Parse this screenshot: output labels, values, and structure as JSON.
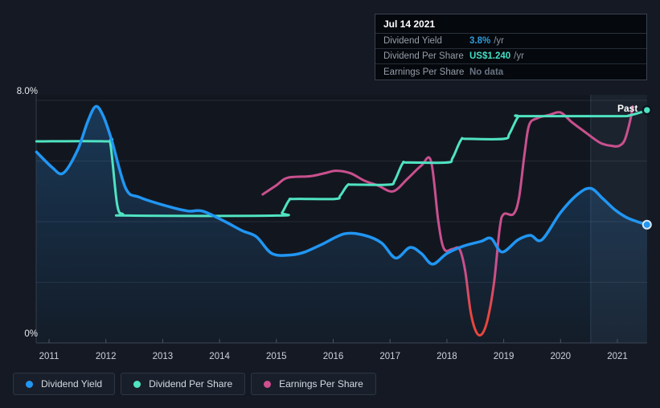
{
  "tooltip": {
    "date": "Jul 14 2021",
    "rows": [
      {
        "label": "Dividend Yield",
        "value": "3.8%",
        "suffix": "/yr",
        "color": "#2d9cdb"
      },
      {
        "label": "Dividend Per Share",
        "value": "US$1.240",
        "suffix": "/yr",
        "color": "#43dfc4"
      },
      {
        "label": "Earnings Per Share",
        "value": "No data",
        "suffix": "",
        "color": "#697382"
      }
    ]
  },
  "legend": {
    "items": [
      {
        "label": "Dividend Yield",
        "color": "#2196f3"
      },
      {
        "label": "Dividend Per Share",
        "color": "#50e3c2"
      },
      {
        "label": "Earnings Per Share",
        "color": "#cf4f90"
      }
    ]
  },
  "chart_data": {
    "type": "line",
    "past_label": "Past",
    "y_axis": {
      "unit": "%",
      "min": 0,
      "max": 8,
      "labeled_ticks": [
        {
          "value": 8,
          "label": "8.0%"
        },
        {
          "value": 0,
          "label": "0%"
        }
      ],
      "grid_values": [
        8,
        6,
        4,
        2
      ]
    },
    "x_axis": {
      "min": 2010.78,
      "max": 2021.52,
      "tick_years": [
        "2011",
        "2012",
        "2013",
        "2014",
        "2015",
        "2016",
        "2017",
        "2018",
        "2019",
        "2020",
        "2021"
      ]
    },
    "highlight_band": {
      "from": 2020.53,
      "to": 2021.52
    },
    "series": [
      {
        "name": "Dividend Yield",
        "color": "#2196f3",
        "area_fill": true,
        "end_marker": true,
        "points": [
          [
            2010.78,
            6.3
          ],
          [
            2011.05,
            5.8
          ],
          [
            2011.25,
            5.6
          ],
          [
            2011.5,
            6.35
          ],
          [
            2011.68,
            7.3
          ],
          [
            2011.82,
            7.8
          ],
          [
            2011.95,
            7.5
          ],
          [
            2012.1,
            6.7
          ],
          [
            2012.35,
            5.1
          ],
          [
            2012.6,
            4.8
          ],
          [
            2013.1,
            4.5
          ],
          [
            2013.45,
            4.35
          ],
          [
            2013.7,
            4.35
          ],
          [
            2014.1,
            4.0
          ],
          [
            2014.4,
            3.7
          ],
          [
            2014.65,
            3.5
          ],
          [
            2014.92,
            2.95
          ],
          [
            2015.25,
            2.9
          ],
          [
            2015.5,
            3.0
          ],
          [
            2015.8,
            3.25
          ],
          [
            2016.2,
            3.6
          ],
          [
            2016.55,
            3.55
          ],
          [
            2016.85,
            3.3
          ],
          [
            2017.1,
            2.8
          ],
          [
            2017.35,
            3.15
          ],
          [
            2017.55,
            2.95
          ],
          [
            2017.75,
            2.6
          ],
          [
            2018.0,
            2.95
          ],
          [
            2018.3,
            3.2
          ],
          [
            2018.6,
            3.35
          ],
          [
            2018.78,
            3.45
          ],
          [
            2018.97,
            3.0
          ],
          [
            2019.25,
            3.4
          ],
          [
            2019.47,
            3.55
          ],
          [
            2019.67,
            3.4
          ],
          [
            2020.0,
            4.3
          ],
          [
            2020.3,
            4.9
          ],
          [
            2020.53,
            5.1
          ],
          [
            2020.75,
            4.75
          ],
          [
            2020.95,
            4.4
          ],
          [
            2021.15,
            4.15
          ],
          [
            2021.35,
            4.0
          ],
          [
            2021.52,
            3.9
          ]
        ]
      },
      {
        "name": "Dividend Per Share",
        "color": "#50e3c2",
        "area_fill": false,
        "end_marker": true,
        "points": [
          [
            2010.78,
            6.65
          ],
          [
            2012.0,
            6.65
          ],
          [
            2012.08,
            6.55
          ],
          [
            2012.2,
            4.55
          ],
          [
            2012.3,
            4.25
          ],
          [
            2012.4,
            4.2
          ],
          [
            2015.0,
            4.2
          ],
          [
            2015.1,
            4.3
          ],
          [
            2015.22,
            4.7
          ],
          [
            2015.32,
            4.75
          ],
          [
            2016.03,
            4.75
          ],
          [
            2016.12,
            4.85
          ],
          [
            2016.25,
            5.2
          ],
          [
            2016.35,
            5.22
          ],
          [
            2016.98,
            5.22
          ],
          [
            2017.08,
            5.35
          ],
          [
            2017.22,
            5.92
          ],
          [
            2017.32,
            5.95
          ],
          [
            2018.0,
            5.95
          ],
          [
            2018.1,
            6.1
          ],
          [
            2018.25,
            6.7
          ],
          [
            2018.35,
            6.73
          ],
          [
            2019.0,
            6.73
          ],
          [
            2019.1,
            6.9
          ],
          [
            2019.25,
            7.45
          ],
          [
            2019.35,
            7.48
          ],
          [
            2021.0,
            7.48
          ],
          [
            2021.2,
            7.5
          ],
          [
            2021.4,
            7.6
          ],
          [
            2021.52,
            7.68
          ]
        ]
      },
      {
        "name": "Earnings Per Share",
        "color": "#c9508e",
        "negative_color": "#e8463e",
        "area_fill": false,
        "end_marker": false,
        "points": [
          [
            2014.76,
            4.9
          ],
          [
            2015.0,
            5.2
          ],
          [
            2015.2,
            5.45
          ],
          [
            2015.6,
            5.5
          ],
          [
            2015.85,
            5.6
          ],
          [
            2016.05,
            5.68
          ],
          [
            2016.3,
            5.6
          ],
          [
            2016.55,
            5.35
          ],
          [
            2016.78,
            5.2
          ],
          [
            2017.05,
            5.0
          ],
          [
            2017.3,
            5.4
          ],
          [
            2017.55,
            5.85
          ],
          [
            2017.72,
            6.0
          ],
          [
            2017.85,
            4.0
          ],
          [
            2017.95,
            3.1
          ],
          [
            2018.1,
            3.1
          ],
          [
            2018.22,
            3.1
          ],
          [
            2018.32,
            2.4
          ],
          [
            2018.42,
            1.0
          ],
          [
            2018.52,
            0.35
          ],
          [
            2018.62,
            0.3
          ],
          [
            2018.72,
            0.8
          ],
          [
            2018.83,
            2.0
          ],
          [
            2018.93,
            3.8
          ],
          [
            2019.0,
            4.25
          ],
          [
            2019.17,
            4.25
          ],
          [
            2019.27,
            4.8
          ],
          [
            2019.37,
            6.3
          ],
          [
            2019.45,
            7.2
          ],
          [
            2019.6,
            7.42
          ],
          [
            2019.8,
            7.52
          ],
          [
            2020.0,
            7.6
          ],
          [
            2020.2,
            7.28
          ],
          [
            2020.45,
            6.93
          ],
          [
            2020.7,
            6.6
          ],
          [
            2020.9,
            6.5
          ],
          [
            2021.03,
            6.5
          ],
          [
            2021.13,
            6.7
          ],
          [
            2021.22,
            7.3
          ],
          [
            2021.27,
            7.8
          ]
        ]
      }
    ]
  }
}
